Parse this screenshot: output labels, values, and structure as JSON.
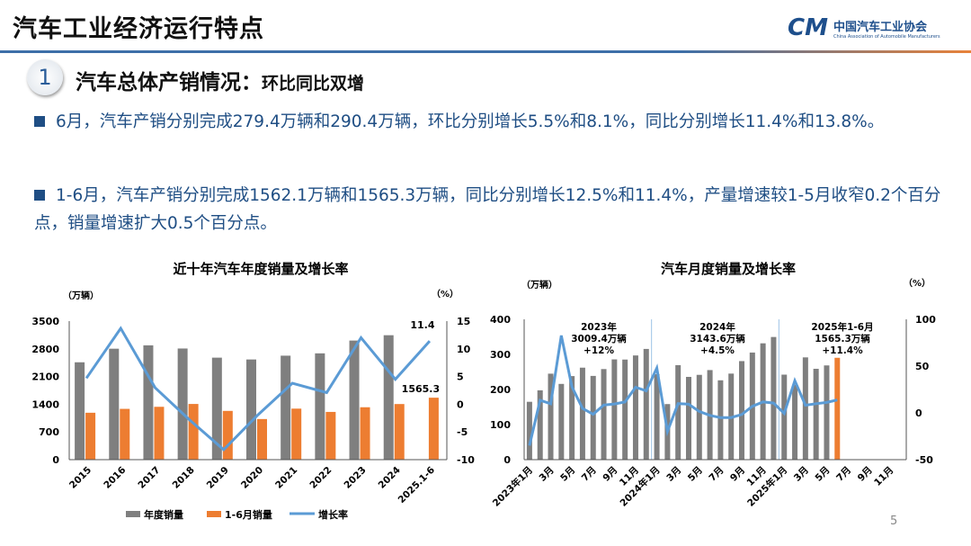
{
  "header": {
    "title": "汽车工业经济运行特点",
    "logo_mark": "CM",
    "logo_cn": "中国汽车工业协会",
    "logo_en": "China Association of Automobile Manufacturers"
  },
  "section": {
    "number": "1",
    "title": "汽车总体产销情况：",
    "subtitle": "环比同比双增"
  },
  "bullets": [
    "6月，汽车产销分别完成279.4万辆和290.4万辆，环比分别增长5.5%和8.1%，同比分别增长11.4%和13.8%。",
    "1-6月，汽车产销分别完成1562.1万辆和1565.3万辆，同比分别增长12.5%和11.4%，产量增速较1-5月收窄0.2个百分点，销量增速扩大0.5个百分点。"
  ],
  "page_number": "5",
  "chart_data": [
    {
      "type": "bar",
      "title": "近十年汽车年度销量及增长率",
      "ylabel": "（万辆）",
      "y2label": "（%）",
      "ylim": [
        0,
        3500
      ],
      "yticks": [
        0,
        700,
        1400,
        2100,
        2800,
        3500
      ],
      "y2lim": [
        -10,
        15
      ],
      "y2ticks": [
        -10,
        -5,
        0,
        5,
        10,
        15
      ],
      "categories": [
        "2015",
        "2016",
        "2017",
        "2018",
        "2019",
        "2020",
        "2021",
        "2022",
        "2023",
        "2024",
        "2025.1-6"
      ],
      "series": [
        {
          "name": "年度销量",
          "type": "bar",
          "color": "#7f7f7f",
          "values": [
            2460,
            2803,
            2888,
            2808,
            2577,
            2531,
            2627,
            2686,
            3009,
            3144,
            null
          ]
        },
        {
          "name": "1-6月销量",
          "type": "bar",
          "color": "#ed7d31",
          "values": [
            1185,
            1283,
            1335,
            1407,
            1232,
            1026,
            1289,
            1206,
            1324,
            1405,
            1565.3
          ]
        },
        {
          "name": "增长率",
          "type": "line",
          "axis": "right",
          "color": "#5b9bd5",
          "values": [
            4.7,
            13.7,
            3.0,
            -2.8,
            -8.2,
            -1.9,
            3.8,
            2.1,
            12.0,
            4.5,
            11.4
          ]
        }
      ],
      "annotations": [
        "11.4",
        "1565.3"
      ],
      "legend": "bottom"
    },
    {
      "type": "bar",
      "title": "汽车月度销量及增长率",
      "ylabel": "（万辆）",
      "y2label": "（%）",
      "ylim": [
        0,
        400
      ],
      "yticks": [
        0,
        100,
        200,
        300,
        400
      ],
      "y2lim": [
        -50,
        100
      ],
      "y2ticks": [
        -50,
        0,
        50,
        100
      ],
      "x_tick_labels": [
        "2023年1月",
        "3月",
        "5月",
        "7月",
        "9月",
        "11月",
        "2024年1月",
        "3月",
        "5月",
        "7月",
        "9月",
        "11月",
        "2025年1月",
        "3月",
        "5月",
        "7月",
        "9月",
        "11月"
      ],
      "months": 36,
      "sales": [
        164.9,
        197.6,
        245.1,
        215.9,
        238.2,
        262.2,
        238.7,
        258.2,
        285.8,
        285.3,
        297.0,
        315.6,
        243.9,
        158.4,
        269.4,
        235.9,
        241.7,
        255.3,
        226.2,
        245.3,
        280.9,
        305.3,
        331.6,
        349.6,
        242.3,
        212.9,
        291.5,
        259.0,
        268.6,
        290.4
      ],
      "growth": [
        -35,
        13.5,
        9.7,
        82.7,
        27.9,
        4.8,
        -1.5,
        8.4,
        9.5,
        11.7,
        27.4,
        23.5,
        47.9,
        -19.9,
        9.9,
        9.3,
        1.5,
        -2.7,
        -5.1,
        -5.0,
        -1.7,
        7.0,
        11.7,
        10.5,
        -0.6,
        34.4,
        8.2,
        9.8,
        11.2,
        13.8
      ],
      "bar_color": "#7f7f7f",
      "highlight_color": "#ed7d31",
      "line_color": "#5b9bd5",
      "annotations": [
        {
          "lines": [
            "2023年",
            "3009.4万辆",
            "+12%"
          ]
        },
        {
          "lines": [
            "2024年",
            "3143.6万辆",
            "+4.5%"
          ]
        },
        {
          "lines": [
            "2025年1-6月",
            "1565.3万辆",
            "+11.4%"
          ]
        }
      ]
    }
  ]
}
